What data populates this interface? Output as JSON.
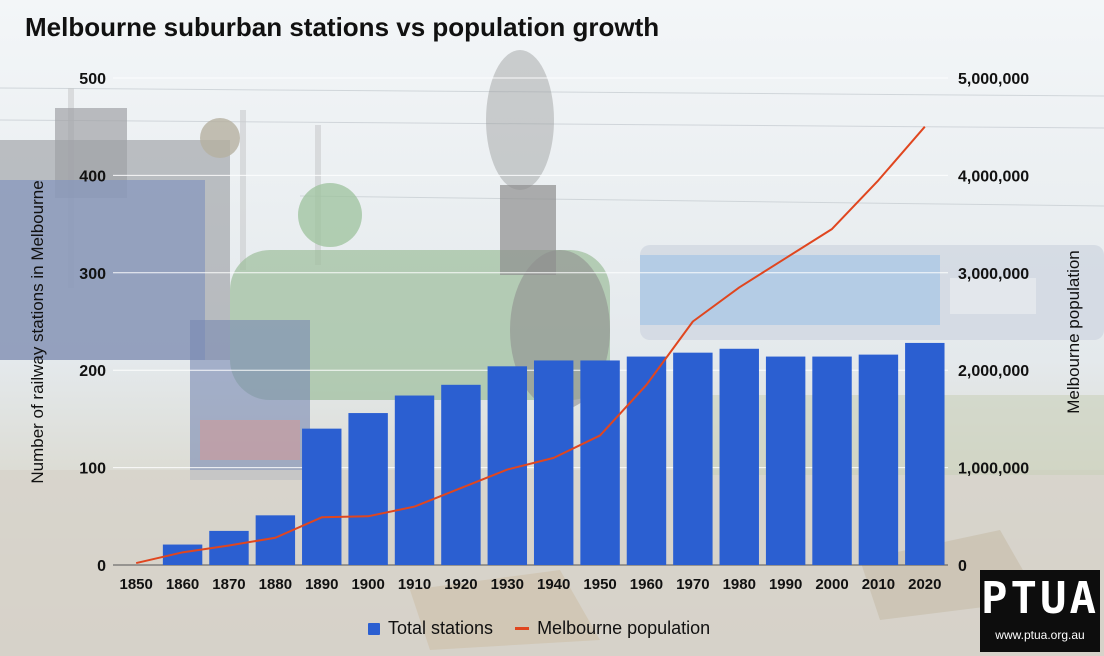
{
  "title": "Melbourne suburban stations vs population growth",
  "logo": {
    "text": "PTUA",
    "url": "www.ptua.org.au"
  },
  "colors": {
    "bars": "#2b5fd1",
    "line": "#e0461f",
    "grid": "#ffffff"
  },
  "chart_data": {
    "type": "bar",
    "title": "Melbourne suburban stations vs population growth",
    "categories": [
      "1850",
      "1860",
      "1870",
      "1880",
      "1890",
      "1900",
      "1910",
      "1920",
      "1930",
      "1940",
      "1950",
      "1960",
      "1970",
      "1980",
      "1990",
      "2000",
      "2010",
      "2020"
    ],
    "series": [
      {
        "name": "Total stations",
        "type": "bar",
        "axis": "left",
        "values": [
          0,
          21,
          35,
          51,
          140,
          156,
          174,
          185,
          204,
          210,
          210,
          214,
          218,
          222,
          214,
          214,
          216,
          228
        ]
      },
      {
        "name": "Melbourne population",
        "type": "line",
        "axis": "right",
        "values": [
          20000,
          130000,
          200000,
          280000,
          490000,
          500000,
          600000,
          790000,
          980000,
          1100000,
          1330000,
          1850000,
          2500000,
          2850000,
          3150000,
          3450000,
          3950000,
          4500000
        ]
      }
    ],
    "ylabel": "Number of railway stations in Melbourne",
    "y2label": "Melbourne population",
    "xlabel": "",
    "ylim": [
      0,
      500
    ],
    "y2lim": [
      0,
      5000000
    ],
    "yticks": [
      "0",
      "100",
      "200",
      "300",
      "400",
      "500"
    ],
    "y2ticks": [
      "0",
      "1,000,000",
      "2,000,000",
      "3,000,000",
      "4,000,000",
      "5,000,000"
    ],
    "grid": true,
    "legend_position": "bottom"
  }
}
